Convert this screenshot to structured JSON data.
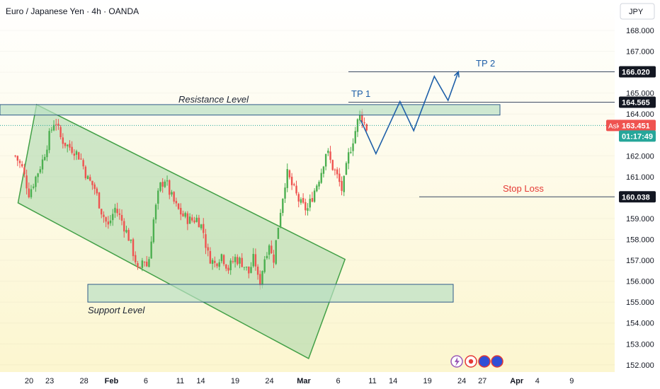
{
  "header": {
    "symbol_title": "Euro / Japanese Yen · 4h · OANDA",
    "currency": "JPY"
  },
  "chart_data": {
    "type": "candlestick",
    "title": "Euro / Japanese Yen · 4h · OANDA",
    "ylim": [
      151.8,
      168.6
    ],
    "y_ticks": [
      152,
      153,
      154,
      155,
      156,
      157,
      158,
      159,
      160,
      161,
      162,
      163,
      164,
      165,
      166,
      167,
      168
    ],
    "y_tick_labels": [
      "152.000",
      "153.000",
      "154.000",
      "155.000",
      "156.000",
      "157.000",
      "158.000",
      "159.000",
      "160.000",
      "161.000",
      "162.000",
      "163.000",
      "164.000",
      "165.000",
      "166.000",
      "167.000",
      "168.000"
    ],
    "x_ticks": [
      {
        "label": "20",
        "day": 0
      },
      {
        "label": "23",
        "day": 3
      },
      {
        "label": "28",
        "day": 8
      },
      {
        "label": "Feb",
        "day": 12
      },
      {
        "label": "6",
        "day": 17
      },
      {
        "label": "11",
        "day": 22
      },
      {
        "label": "14",
        "day": 25
      },
      {
        "label": "19",
        "day": 30
      },
      {
        "label": "24",
        "day": 35
      },
      {
        "label": "Mar",
        "day": 40
      },
      {
        "label": "6",
        "day": 45
      },
      {
        "label": "11",
        "day": 50
      },
      {
        "label": "14",
        "day": 53
      },
      {
        "label": "19",
        "day": 58
      },
      {
        "label": "24",
        "day": 63
      },
      {
        "label": "27",
        "day": 66
      },
      {
        "label": "Apr",
        "day": 71
      },
      {
        "label": "4",
        "day": 74
      },
      {
        "label": "9",
        "day": 79
      }
    ],
    "price_path": [
      [
        -2,
        162.0
      ],
      [
        -1,
        161.4
      ],
      [
        0,
        160.2
      ],
      [
        1,
        161.0
      ],
      [
        2,
        161.8
      ],
      [
        3,
        163.0
      ],
      [
        3.8,
        163.8
      ],
      [
        4.5,
        162.9
      ],
      [
        5.5,
        162.5
      ],
      [
        6.5,
        162.3
      ],
      [
        7.5,
        161.9
      ],
      [
        8.5,
        160.9
      ],
      [
        9.5,
        160.5
      ],
      [
        10.5,
        159.4
      ],
      [
        11.5,
        158.6
      ],
      [
        12.5,
        159.5
      ],
      [
        13.5,
        158.9
      ],
      [
        14.5,
        158.1
      ],
      [
        15.5,
        157.0
      ],
      [
        16.0,
        156.2
      ],
      [
        16.6,
        157.2
      ],
      [
        17.3,
        156.6
      ],
      [
        18.0,
        158.7
      ],
      [
        19.0,
        160.5
      ],
      [
        19.8,
        160.9
      ],
      [
        20.5,
        160.2
      ],
      [
        21.5,
        159.5
      ],
      [
        22.5,
        159.1
      ],
      [
        23.5,
        158.9
      ],
      [
        24.5,
        159.0
      ],
      [
        25.3,
        158.5
      ],
      [
        26.0,
        157.3
      ],
      [
        27.0,
        156.8
      ],
      [
        28.0,
        157.3
      ],
      [
        29.0,
        156.6
      ],
      [
        30.0,
        157.1
      ],
      [
        31.0,
        156.9
      ],
      [
        32.0,
        156.4
      ],
      [
        32.8,
        157.2
      ],
      [
        33.5,
        155.7
      ],
      [
        34.2,
        157.0
      ],
      [
        35.0,
        157.9
      ],
      [
        35.5,
        156.8
      ],
      [
        36.5,
        159.2
      ],
      [
        37.5,
        161.2
      ],
      [
        38.5,
        160.4
      ],
      [
        39.5,
        159.7
      ],
      [
        40.5,
        159.4
      ],
      [
        41.5,
        160.3
      ],
      [
        42.5,
        161.2
      ],
      [
        43.3,
        162.3
      ],
      [
        44.0,
        161.6
      ],
      [
        45.0,
        160.9
      ],
      [
        45.6,
        160.3
      ],
      [
        46.5,
        162.0
      ],
      [
        47.5,
        163.2
      ],
      [
        48.2,
        164.1
      ],
      [
        48.7,
        163.6
      ],
      [
        49.2,
        163.3
      ]
    ],
    "resistance_level": {
      "label": "Resistance Level",
      "low": 163.95,
      "high": 164.45
    },
    "support_level": {
      "label": "Support Level",
      "low": 155.0,
      "high": 155.85
    },
    "targets": [
      {
        "label": "TP 1",
        "value": 164.565,
        "value_label": "164.565"
      },
      {
        "label": "TP 2",
        "value": 166.02,
        "value_label": "166.020"
      },
      {
        "label": "Stop Loss",
        "value": 160.038,
        "value_label": "160.038"
      }
    ],
    "current_price": {
      "tag": "Ask",
      "value": 163.451,
      "value_label": "163.451",
      "countdown": "01:17:49"
    },
    "projection_path": [
      [
        48.3,
        163.7
      ],
      [
        50.5,
        162.1
      ],
      [
        54.0,
        164.6
      ],
      [
        56.0,
        163.2
      ],
      [
        59.0,
        165.8
      ],
      [
        61.0,
        164.65
      ],
      [
        62.5,
        166.02
      ]
    ]
  },
  "colors": {
    "background_top": "#ffffff",
    "background_bottom": "#fcf6cf",
    "up_candle": "#4caf50",
    "down_candle": "#ef5350",
    "channel_fill": "#a5d6a7",
    "channel_stroke": "#43a047",
    "zone_fill": "#b9e0c3",
    "level_line": "#3f4d66",
    "projection": "#1e5fa8",
    "stop_loss_text": "#e53935",
    "tp_text": "#1e5fa8",
    "price_tag": "#ef5350",
    "countdown_tag": "#26a69a"
  }
}
